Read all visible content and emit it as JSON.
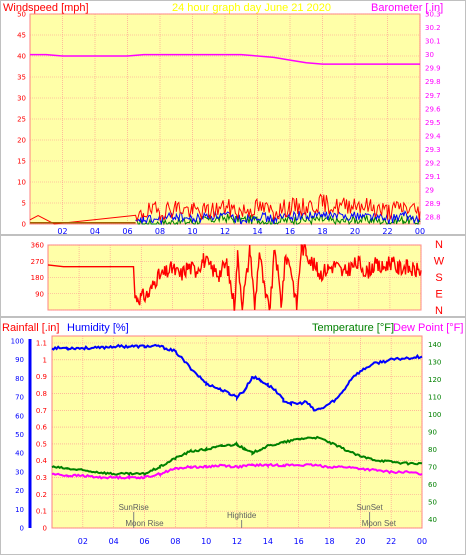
{
  "chart_data": [
    {
      "type": "line",
      "name_ref": "wind-baro",
      "title": "24 hour graph day   June 21 2020",
      "ylabel_left": "Windspeed [mph]",
      "ylabel_right": "Barometer [.in]",
      "x_ticks": [
        "02",
        "04",
        "06",
        "08",
        "10",
        "12",
        "14",
        "16",
        "18",
        "20",
        "22",
        "00"
      ],
      "x_range": [
        0,
        24
      ],
      "y_left_range": [
        0,
        50
      ],
      "y_left_ticks": [
        0,
        5,
        10,
        15,
        20,
        25,
        30,
        35,
        40,
        45,
        50
      ],
      "y_right_range": [
        28.75,
        30.3
      ],
      "y_right_ticks": [
        28.8,
        28.9,
        29,
        29.1,
        29.2,
        29.3,
        29.4,
        29.5,
        29.6,
        29.7,
        29.8,
        29.9,
        30,
        30.1,
        30.2,
        30.3
      ],
      "grid": true,
      "colors": {
        "wind": "#ff0000",
        "baro": "#ff00ff",
        "gust": "#ff0000",
        "avg": "#0000ff",
        "low": "#008000"
      },
      "series": [
        {
          "name_ref": "barometer",
          "axis": "right",
          "x": [
            0,
            1,
            2,
            3,
            4,
            5,
            6,
            7,
            8,
            9,
            10,
            11,
            12,
            13,
            14,
            15,
            16,
            17,
            18,
            19,
            20,
            21,
            22,
            23,
            24
          ],
          "values": [
            30.0,
            30.0,
            29.99,
            29.99,
            29.99,
            29.99,
            29.99,
            30.0,
            30.0,
            30.0,
            30.0,
            30.0,
            30.0,
            30.0,
            29.99,
            29.98,
            29.96,
            29.94,
            29.93,
            29.93,
            29.93,
            29.93,
            29.93,
            29.93,
            29.93
          ]
        },
        {
          "name_ref": "wind-gust",
          "axis": "left",
          "x": [
            0,
            0.5,
            1,
            1.5,
            6.5,
            7,
            8,
            9,
            10,
            11,
            12,
            13,
            14,
            15,
            16,
            17,
            18,
            19,
            20,
            21,
            22,
            23,
            24
          ],
          "values": [
            1,
            2,
            1,
            0,
            0,
            3,
            3,
            4,
            3,
            3,
            4,
            3,
            4,
            3,
            4,
            4,
            5,
            4,
            5,
            4,
            3,
            4,
            3
          ]
        },
        {
          "name_ref": "wind-average",
          "axis": "left",
          "x": [
            6.5,
            7,
            8,
            9,
            10,
            11,
            12,
            13,
            14,
            15,
            16,
            17,
            18,
            19,
            20,
            21,
            22,
            23,
            24
          ],
          "values": [
            0,
            1,
            1,
            2,
            1,
            2,
            2,
            1,
            2,
            1,
            2,
            2,
            2,
            2,
            2,
            2,
            1,
            2,
            1
          ]
        },
        {
          "name_ref": "wind-low",
          "axis": "left",
          "x": [
            6.5,
            8,
            9,
            10,
            11,
            12,
            13,
            14,
            15,
            16,
            17,
            18,
            19,
            20,
            21,
            22,
            23,
            24
          ],
          "values": [
            0,
            0,
            0.5,
            0.5,
            1,
            1.5,
            1,
            1,
            0.5,
            1,
            1,
            1,
            0.5,
            1,
            1,
            0.5,
            1,
            0.5
          ]
        }
      ]
    },
    {
      "type": "scatter",
      "name_ref": "wind-direction",
      "x_ticks": [
        "02",
        "04",
        "06",
        "08",
        "10",
        "12",
        "14",
        "16",
        "18",
        "20",
        "22",
        "00"
      ],
      "x_range": [
        0,
        24
      ],
      "y_range": [
        0,
        360
      ],
      "y_ticks": [
        0,
        90,
        180,
        270,
        360
      ],
      "y_tick_labels": [
        "",
        "90",
        "180",
        "270",
        "360"
      ],
      "right_labels": [
        "N",
        "W",
        "S",
        "E",
        "N"
      ],
      "grid": true,
      "series": [
        {
          "name_ref": "direction",
          "color": "#ff0000",
          "x": [
            0,
            1,
            2,
            3,
            4,
            5,
            5.5,
            5.6,
            6,
            6.5,
            7,
            7.5,
            8,
            8.5,
            9,
            9.5,
            10,
            10.5,
            11,
            11.5,
            12,
            12.2,
            12.5,
            12.8,
            13,
            13.3,
            13.6,
            14,
            14.3,
            14.6,
            15,
            15.3,
            15.6,
            16,
            16.3,
            16.6,
            17,
            17.5,
            18,
            18.5,
            19,
            19.5,
            20,
            20.5,
            21,
            21.5,
            22,
            22.5,
            23,
            23.5,
            24
          ],
          "values": [
            250,
            240,
            240,
            240,
            240,
            240,
            240,
            70,
            70,
            90,
            180,
            200,
            230,
            190,
            240,
            220,
            280,
            230,
            200,
            260,
            20,
            300,
            40,
            200,
            350,
            10,
            330,
            60,
            20,
            350,
            40,
            300,
            250,
            20,
            350,
            330,
            260,
            200,
            230,
            250,
            200,
            240,
            260,
            210,
            250,
            230,
            270,
            230,
            240,
            220,
            220
          ]
        }
      ]
    },
    {
      "type": "line",
      "name_ref": "temp-hum-rain",
      "ylabel_left_1": "Rainfall [.in]",
      "ylabel_left_2": "Humidity [%]",
      "ylabel_right_1": "Temperature [°F]",
      "ylabel_right_2": "Dew Point [°F]",
      "x_ticks": [
        "02",
        "04",
        "06",
        "08",
        "10",
        "12",
        "14",
        "16",
        "18",
        "20",
        "22",
        "00"
      ],
      "x_range": [
        0,
        24
      ],
      "rain_ticks": [
        "0",
        "0.1",
        "0.2",
        "0.3",
        "0.4",
        "0.5",
        "0.6",
        "0.7",
        "0.8",
        "0.9",
        "1",
        "1.1"
      ],
      "rain_range": [
        0,
        1.1
      ],
      "humidity_ticks": [
        0,
        10,
        20,
        30,
        40,
        50,
        60,
        70,
        80,
        90,
        100
      ],
      "humidity_range": [
        0,
        100
      ],
      "temp_ticks": [
        40,
        50,
        60,
        70,
        80,
        90,
        100,
        110,
        120,
        130,
        140
      ],
      "temp_range": [
        35,
        145
      ],
      "grid": true,
      "series": [
        {
          "name_ref": "humidity",
          "axis": "rain",
          "color": "#0000ff",
          "x": [
            0,
            1,
            2,
            3,
            4,
            5,
            6,
            7,
            8,
            9,
            10,
            11,
            11.5,
            12,
            12.5,
            13,
            13.5,
            14,
            14.5,
            15,
            15.5,
            16,
            16.5,
            17,
            17.5,
            18,
            18.5,
            19,
            19.5,
            20,
            20.5,
            21,
            22,
            23,
            24
          ],
          "values": [
            1.07,
            1.07,
            1.07,
            1.07,
            1.08,
            1.08,
            1.08,
            1.08,
            1.05,
            0.95,
            0.86,
            0.82,
            0.8,
            0.78,
            0.82,
            0.9,
            0.88,
            0.85,
            0.82,
            0.76,
            0.74,
            0.74,
            0.75,
            0.7,
            0.71,
            0.74,
            0.77,
            0.83,
            0.9,
            0.93,
            0.96,
            0.98,
            1.0,
            1.01,
            1.02
          ]
        },
        {
          "name_ref": "temperature",
          "axis": "temp",
          "color": "#008000",
          "x": [
            0,
            1,
            2,
            3,
            4,
            5,
            6,
            7,
            8,
            9,
            10,
            11,
            12,
            12.5,
            13,
            13.5,
            14,
            15,
            16,
            17,
            17.5,
            18,
            19,
            20,
            21,
            22,
            23,
            24
          ],
          "values": [
            70,
            69,
            68,
            67,
            66,
            66,
            66,
            70,
            75,
            79,
            80,
            82,
            83,
            80,
            78,
            80,
            82,
            84,
            86,
            87,
            86,
            84,
            80,
            76,
            74,
            73,
            72,
            72
          ]
        },
        {
          "name_ref": "dew-point",
          "axis": "temp",
          "color": "#ff00ff",
          "x": [
            0,
            1,
            2,
            3,
            4,
            5,
            6,
            7,
            8,
            9,
            10,
            11,
            12,
            13,
            14,
            15,
            16,
            17,
            18,
            19,
            20,
            21,
            22,
            23,
            24
          ],
          "values": [
            66,
            65,
            65,
            64,
            64,
            64,
            64,
            66,
            69,
            70,
            70,
            71,
            70,
            71,
            71,
            71,
            71,
            71,
            70,
            70,
            69,
            68,
            67,
            67,
            66
          ]
        }
      ],
      "events": [
        {
          "label": "SunRise",
          "x": 5.3,
          "row": "top"
        },
        {
          "label": "Moon Rise",
          "x": 6.0,
          "row": "bottom"
        },
        {
          "label": "Hightide",
          "x": 12.3,
          "row": "mid"
        },
        {
          "label": "SunSet",
          "x": 20.6,
          "row": "top"
        },
        {
          "label": "Moon Set",
          "x": 21.2,
          "row": "bottom"
        }
      ]
    }
  ]
}
